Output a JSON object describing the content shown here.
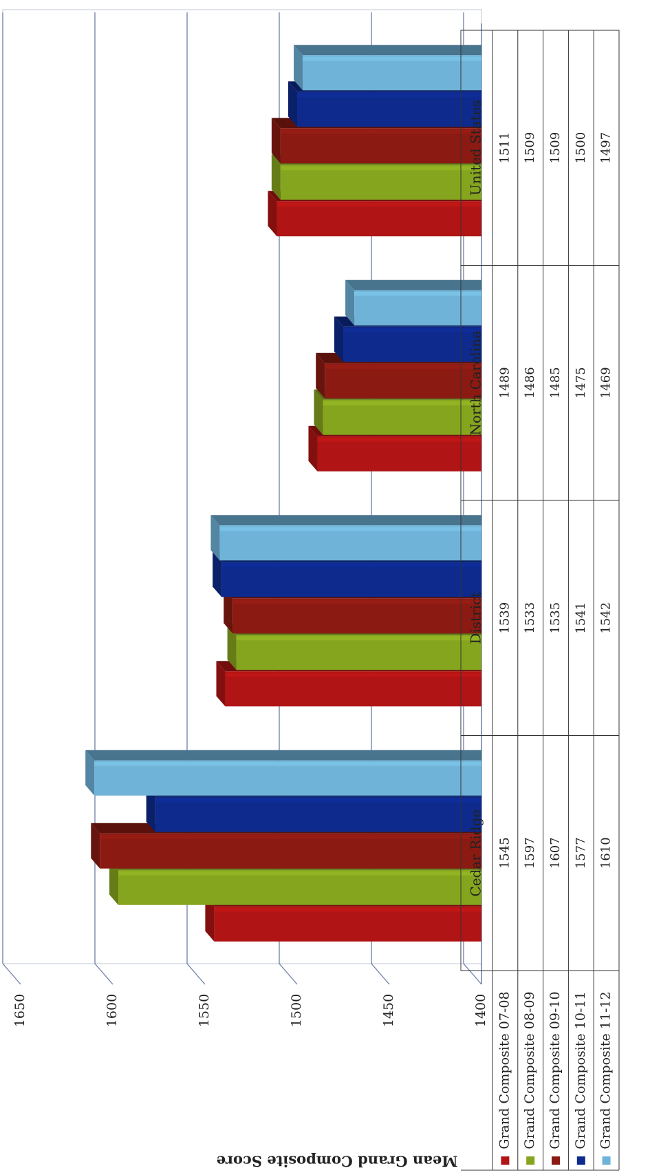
{
  "chart_data": {
    "type": "bar",
    "orientation": "rotated-horizontal",
    "title": "",
    "ylabel": "Mean Grand Composite Score",
    "ylim": [
      1400,
      1650
    ],
    "yticks": [
      1400,
      1450,
      1500,
      1550,
      1600,
      1650
    ],
    "grid": true,
    "legend": "data-table",
    "categories": [
      "Cedar Ridge",
      "District",
      "North Carolina",
      "United States"
    ],
    "series": [
      {
        "name": "Grand Composite 07-08",
        "color": "#b01414",
        "values": [
          1545,
          1539,
          1489,
          1511
        ]
      },
      {
        "name": "Grand Composite 08-09",
        "color": "#86a51f",
        "values": [
          1597,
          1533,
          1486,
          1509
        ]
      },
      {
        "name": "Grand Composite 09-10",
        "color": "#8b1a12",
        "values": [
          1607,
          1535,
          1485,
          1509
        ]
      },
      {
        "name": "Grand Composite 10-11",
        "color": "#0d2a8c",
        "values": [
          1577,
          1541,
          1475,
          1500
        ]
      },
      {
        "name": "Grand Composite 11-12",
        "color": "#6fb3d9",
        "values": [
          1610,
          1542,
          1469,
          1497
        ]
      }
    ]
  }
}
